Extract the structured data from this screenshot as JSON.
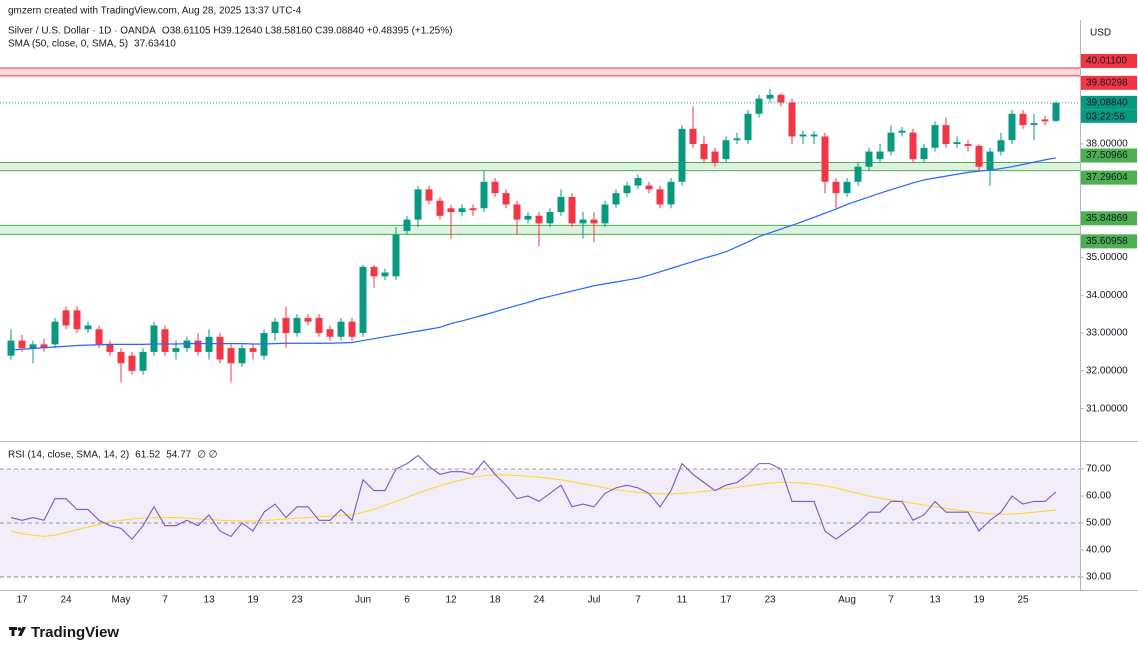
{
  "attribution": "gmzern created with TradingView.com, Aug 28, 2025 13:37 UTC-4",
  "brand": "TradingView",
  "chart_data": [
    {
      "type": "candlestick",
      "title": "Silver / U.S. Dollar · 1D · OANDA",
      "ohlc_label": "O38.61105 H39.12640 L38.58160 C39.08840 +0.48395 (+1.25%)",
      "currency": "USD",
      "up_color": "#089981",
      "down_color": "#f23645",
      "categories": [
        null,
        "17",
        null,
        null,
        null,
        "24",
        null,
        null,
        null,
        null,
        "May",
        null,
        null,
        null,
        "7",
        null,
        null,
        null,
        "13",
        null,
        null,
        null,
        "19",
        null,
        null,
        null,
        "23",
        null,
        null,
        null,
        null,
        null,
        "Jun",
        null,
        null,
        null,
        "6",
        null,
        null,
        null,
        "12",
        null,
        null,
        null,
        "18",
        null,
        null,
        null,
        "24",
        null,
        null,
        null,
        null,
        "Jul",
        null,
        null,
        null,
        "7",
        null,
        null,
        null,
        "11",
        null,
        null,
        null,
        "17",
        null,
        null,
        null,
        "23",
        null,
        null,
        null,
        null,
        null,
        null,
        "Aug",
        null,
        null,
        null,
        "7",
        null,
        null,
        null,
        "13",
        null,
        null,
        null,
        "19",
        null,
        null,
        null,
        "25",
        null,
        null,
        null
      ],
      "open": [
        32.4,
        32.8,
        32.6,
        32.7,
        32.7,
        33.6,
        33.6,
        33.1,
        33.1,
        32.7,
        32.5,
        32.4,
        32.0,
        32.5,
        33.1,
        32.5,
        32.6,
        32.8,
        32.5,
        32.9,
        32.6,
        32.2,
        32.6,
        32.4,
        33.0,
        33.4,
        33.0,
        33.4,
        33.4,
        33.1,
        32.9,
        33.3,
        33.0,
        34.75,
        34.5,
        34.5,
        35.7,
        36.0,
        36.8,
        36.5,
        36.3,
        36.2,
        36.3,
        36.3,
        37.0,
        36.7,
        36.4,
        36.0,
        36.1,
        35.9,
        36.2,
        36.6,
        35.9,
        36.0,
        35.9,
        36.4,
        36.7,
        36.9,
        36.9,
        36.8,
        36.4,
        37.0,
        38.4,
        38.0,
        37.8,
        37.6,
        38.1,
        38.1,
        38.8,
        39.2,
        39.3,
        39.1,
        38.2,
        38.2,
        38.2,
        37.0,
        36.7,
        37.0,
        37.4,
        37.6,
        37.8,
        38.3,
        38.3,
        37.6,
        37.9,
        38.5,
        38.0,
        38.0,
        37.95,
        37.3,
        37.8,
        38.1,
        38.8,
        38.5,
        38.65,
        38.61105
      ],
      "high": [
        33.1,
        32.95,
        32.8,
        32.85,
        33.4,
        33.7,
        33.7,
        33.3,
        33.2,
        32.8,
        32.6,
        32.5,
        32.6,
        33.3,
        33.2,
        32.8,
        32.9,
        33.0,
        33.1,
        33.0,
        32.7,
        32.7,
        32.7,
        33.1,
        33.4,
        33.7,
        33.5,
        33.5,
        33.5,
        33.2,
        33.4,
        33.4,
        34.8,
        34.8,
        34.7,
        35.8,
        36.1,
        36.9,
        36.9,
        36.6,
        36.4,
        36.4,
        36.4,
        37.3,
        37.1,
        36.8,
        36.5,
        36.2,
        36.2,
        36.3,
        36.8,
        36.7,
        36.2,
        36.2,
        36.5,
        36.8,
        37.0,
        37.2,
        37.0,
        36.9,
        37.1,
        38.5,
        39.0,
        38.2,
        37.9,
        38.2,
        38.3,
        38.9,
        39.3,
        39.45,
        39.35,
        39.2,
        38.35,
        38.35,
        38.3,
        37.1,
        37.1,
        37.5,
        37.9,
        38.0,
        38.5,
        38.45,
        38.4,
        38.0,
        38.6,
        38.7,
        38.2,
        38.1,
        38.0,
        37.9,
        38.3,
        38.9,
        38.9,
        38.8,
        38.75,
        39.1264
      ],
      "low": [
        32.3,
        32.5,
        32.2,
        32.5,
        32.6,
        33.1,
        33.0,
        33.0,
        32.6,
        32.4,
        31.7,
        31.9,
        31.9,
        32.4,
        32.4,
        32.3,
        32.5,
        32.4,
        32.3,
        32.2,
        31.7,
        32.1,
        32.3,
        32.3,
        32.8,
        32.6,
        32.9,
        33.2,
        32.9,
        32.8,
        32.8,
        32.8,
        32.9,
        34.2,
        34.4,
        34.4,
        35.6,
        35.8,
        36.4,
        36.0,
        35.5,
        36.1,
        36.1,
        36.2,
        36.6,
        36.3,
        35.6,
        35.9,
        35.3,
        35.8,
        36.1,
        35.8,
        35.5,
        35.4,
        35.8,
        36.3,
        36.6,
        36.8,
        36.7,
        36.3,
        36.3,
        36.9,
        37.9,
        37.5,
        37.4,
        37.5,
        38.0,
        38.0,
        38.7,
        39.1,
        39.0,
        38.0,
        38.0,
        38.0,
        36.7,
        36.3,
        36.6,
        36.9,
        37.3,
        37.5,
        37.7,
        38.2,
        37.5,
        37.5,
        37.8,
        37.9,
        37.9,
        37.8,
        37.3,
        36.9,
        37.7,
        38.0,
        38.4,
        38.1,
        38.5,
        38.5816
      ],
      "close": [
        32.8,
        32.6,
        32.7,
        32.6,
        33.3,
        33.2,
        33.1,
        33.2,
        32.7,
        32.5,
        32.2,
        32.0,
        32.5,
        33.2,
        32.5,
        32.6,
        32.8,
        32.5,
        32.9,
        32.3,
        32.2,
        32.6,
        32.5,
        33.0,
        33.3,
        33.0,
        33.4,
        33.3,
        33.0,
        32.9,
        33.3,
        32.9,
        34.75,
        34.5,
        34.6,
        35.6,
        36.0,
        36.8,
        36.5,
        36.1,
        36.2,
        36.3,
        36.25,
        37.0,
        36.7,
        36.4,
        36.0,
        36.1,
        35.9,
        36.2,
        36.6,
        35.9,
        36.0,
        35.9,
        36.4,
        36.7,
        36.9,
        37.1,
        36.8,
        36.4,
        37.0,
        38.4,
        38.0,
        37.6,
        37.5,
        38.1,
        38.15,
        38.8,
        39.2,
        39.3,
        39.1,
        38.2,
        38.25,
        38.25,
        37.0,
        36.7,
        37.0,
        37.4,
        37.8,
        37.8,
        38.3,
        38.35,
        37.6,
        37.9,
        38.5,
        38.0,
        38.05,
        37.95,
        37.4,
        37.8,
        38.1,
        38.8,
        38.5,
        38.55,
        38.6,
        39.0884
      ],
      "series": [
        {
          "name": "SMA (50, close, 0, SMA, 5)",
          "last_label": "37.63410",
          "color": "#2962ff",
          "values": [
            32.55,
            32.57,
            32.59,
            32.61,
            32.63,
            32.65,
            32.67,
            32.68,
            32.69,
            32.7,
            32.7,
            32.7,
            32.7,
            32.71,
            32.71,
            32.71,
            32.72,
            32.72,
            32.72,
            32.72,
            32.72,
            32.72,
            32.71,
            32.71,
            32.72,
            32.73,
            32.73,
            32.73,
            32.73,
            32.73,
            32.74,
            32.75,
            32.8,
            32.85,
            32.9,
            32.95,
            33.0,
            33.05,
            33.1,
            33.15,
            33.25,
            33.32,
            33.4,
            33.48,
            33.56,
            33.65,
            33.73,
            33.81,
            33.9,
            33.97,
            34.04,
            34.11,
            34.18,
            34.25,
            34.3,
            34.35,
            34.4,
            34.45,
            34.53,
            34.62,
            34.71,
            34.8,
            34.89,
            34.98,
            35.06,
            35.15,
            35.28,
            35.41,
            35.55,
            35.65,
            35.75,
            35.85,
            35.95,
            36.06,
            36.17,
            36.28,
            36.4,
            36.5,
            36.6,
            36.7,
            36.79,
            36.88,
            36.97,
            37.05,
            37.1,
            37.15,
            37.2,
            37.25,
            37.28,
            37.31,
            37.35,
            37.4,
            37.46,
            37.52,
            37.58,
            37.6341
          ]
        }
      ],
      "zones": [
        {
          "color": "#f23645",
          "top": {
            "value": 40.011,
            "label": "40.01100"
          },
          "bottom": {
            "value": 39.80298,
            "label": "39.80298"
          }
        },
        {
          "color": "#4caf50",
          "top": {
            "value": 37.50966,
            "label": "37.50966"
          },
          "bottom": {
            "value": 37.29604,
            "label": "37.29604"
          }
        },
        {
          "color": "#4caf50",
          "top": {
            "value": 35.84869,
            "label": "35.84869"
          },
          "bottom": {
            "value": 35.60958,
            "label": "35.60958"
          }
        }
      ],
      "last_price": {
        "value": 39.0884,
        "label": "39.08840"
      },
      "countdown": "03:22:56",
      "ylim": [
        30.17,
        41.28
      ],
      "yticks": [
        {
          "value": 31,
          "label": "31.00000"
        },
        {
          "value": 32,
          "label": "32.00000"
        },
        {
          "value": 33,
          "label": "33.00000"
        },
        {
          "value": 34,
          "label": "34.00000"
        },
        {
          "value": 35,
          "label": "35.00000"
        },
        {
          "value": 36,
          "label": "36.00000"
        },
        {
          "value": 37,
          "label": "37.00000"
        },
        {
          "value": 38,
          "label": "38.00000"
        }
      ]
    },
    {
      "type": "line",
      "title": "RSI (14, close, SMA, 14, 2)",
      "extra_label": "∅ ∅",
      "band": [
        30,
        70
      ],
      "band_color": "#7e57c2",
      "midline": 50,
      "series": [
        {
          "name": "RSI",
          "last_label": "61.52",
          "color": "#7e57c2",
          "values": [
            52,
            51,
            52,
            51,
            59,
            59,
            55,
            55,
            51,
            49,
            48,
            44,
            49,
            56,
            49,
            49,
            51,
            49,
            53,
            47,
            45,
            50,
            47,
            54,
            57,
            52,
            56,
            56,
            51,
            51,
            55,
            51,
            66,
            62,
            62,
            70,
            72,
            75,
            71,
            68,
            69,
            69,
            68,
            73,
            68,
            64,
            59,
            60,
            58,
            61,
            64,
            56,
            57,
            56,
            61,
            63,
            64,
            63,
            61,
            56,
            62,
            72,
            68,
            65,
            62,
            64,
            65,
            68,
            72,
            72,
            70,
            58,
            58,
            58,
            47,
            44,
            47,
            50,
            54,
            54,
            58,
            58,
            51,
            53,
            58,
            54,
            54,
            54,
            47,
            51,
            54,
            60,
            57,
            58,
            58,
            61.52
          ]
        },
        {
          "name": "RSI-based MA",
          "last_label": "54.77",
          "color": "#fdd835",
          "values": [
            47,
            46,
            45.5,
            45,
            45.5,
            46.5,
            47.5,
            48.5,
            49.5,
            50.5,
            51,
            51.5,
            51.8,
            52,
            52,
            52,
            51.8,
            51.5,
            51.3,
            51,
            50.8,
            50.7,
            50.7,
            51,
            51.2,
            51.5,
            51.8,
            52,
            52.3,
            52.5,
            52.8,
            53,
            54,
            55,
            56.5,
            58,
            59.5,
            61,
            62.5,
            63.8,
            65,
            66,
            67,
            67.5,
            67.8,
            67.8,
            67.6,
            67.3,
            67,
            66.5,
            66,
            65.3,
            64.5,
            63.8,
            63,
            62.3,
            61.8,
            61.3,
            61,
            60.8,
            60.8,
            61,
            61.3,
            61.7,
            62.2,
            62.7,
            63.2,
            63.8,
            64.3,
            64.8,
            65,
            65,
            64.8,
            64.4,
            63.8,
            63,
            62,
            61,
            60,
            59.2,
            58.5,
            58,
            57.3,
            56.7,
            56,
            55.4,
            54.8,
            54.3,
            53.8,
            53.4,
            53.2,
            53.3,
            53.6,
            54,
            54.4,
            54.77
          ]
        }
      ],
      "ylim": [
        25.9,
        78.9
      ],
      "yticks": [
        {
          "value": 30,
          "label": "30.00"
        },
        {
          "value": 40,
          "label": "40.00"
        },
        {
          "value": 50,
          "label": "50.00"
        },
        {
          "value": 60,
          "label": "60.00"
        },
        {
          "value": 70,
          "label": "70.00"
        }
      ]
    }
  ]
}
